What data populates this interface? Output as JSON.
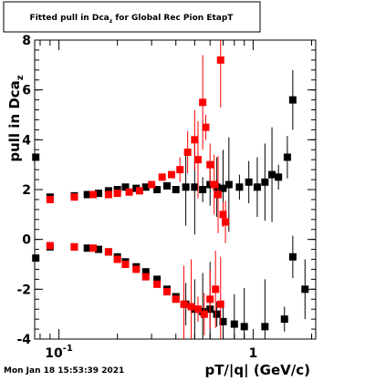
{
  "page": {
    "title": "Fitted pull in Dca",
    "title_sub": "z",
    "title_rest": " for Global Rec Pion EtapT",
    "timestamp": "Mon Jan 18 15:53:39 2021"
  },
  "chart_data": {
    "type": "scatter",
    "title": "Fitted pull in Dca_z for Global Rec Pion EtapT",
    "xlabel": "pT/|q| (GeV/c)",
    "ylabel": "pull in Dca_z",
    "xscale": "log",
    "xlim": [
      0.075,
      2.1
    ],
    "ylim": [
      -4,
      8
    ],
    "xticks": [
      {
        "value": 0.1,
        "label": "10",
        "exp": "-1"
      },
      {
        "value": 1,
        "label": "1",
        "exp": ""
      }
    ],
    "yticks": [
      -4,
      -2,
      0,
      2,
      4,
      6,
      8
    ],
    "grid": false,
    "legend": "none",
    "series": [
      {
        "color": "#000000",
        "points": [
          {
            "x": 0.076,
            "y": 3.3
          },
          {
            "x": 0.09,
            "y": 1.7
          },
          {
            "x": 0.12,
            "y": 1.75
          },
          {
            "x": 0.14,
            "y": 1.8
          },
          {
            "x": 0.16,
            "y": 1.85
          },
          {
            "x": 0.18,
            "y": 1.95
          },
          {
            "x": 0.2,
            "y": 2.0
          },
          {
            "x": 0.22,
            "y": 2.1
          },
          {
            "x": 0.25,
            "y": 2.05
          },
          {
            "x": 0.28,
            "y": 2.1
          },
          {
            "x": 0.32,
            "y": 2.0
          },
          {
            "x": 0.36,
            "y": 2.15
          },
          {
            "x": 0.4,
            "y": 2.0
          },
          {
            "x": 0.45,
            "y": 2.1
          },
          {
            "x": 0.5,
            "y": 2.1
          },
          {
            "x": 0.55,
            "y": 2.0
          },
          {
            "x": 0.6,
            "y": 2.2
          },
          {
            "x": 0.65,
            "y": 2.1
          },
          {
            "x": 0.7,
            "y": 2.05
          },
          {
            "x": 0.75,
            "y": 2.2
          },
          {
            "x": 0.85,
            "y": 2.1
          },
          {
            "x": 0.95,
            "y": 2.3
          },
          {
            "x": 1.05,
            "y": 2.1
          },
          {
            "x": 1.15,
            "y": 2.3
          },
          {
            "x": 1.25,
            "y": 2.6
          },
          {
            "x": 1.35,
            "y": 2.5
          },
          {
            "x": 1.5,
            "y": 3.3
          },
          {
            "x": 1.6,
            "y": 5.6
          },
          {
            "x": 0.076,
            "y": -0.75
          },
          {
            "x": 0.09,
            "y": -0.3
          },
          {
            "x": 0.12,
            "y": -0.3
          },
          {
            "x": 0.14,
            "y": -0.35
          },
          {
            "x": 0.16,
            "y": -0.4
          },
          {
            "x": 0.18,
            "y": -0.5
          },
          {
            "x": 0.2,
            "y": -0.7
          },
          {
            "x": 0.22,
            "y": -0.9
          },
          {
            "x": 0.25,
            "y": -1.1
          },
          {
            "x": 0.28,
            "y": -1.3
          },
          {
            "x": 0.32,
            "y": -1.6
          },
          {
            "x": 0.36,
            "y": -2.0
          },
          {
            "x": 0.4,
            "y": -2.3
          },
          {
            "x": 0.45,
            "y": -2.6
          },
          {
            "x": 0.5,
            "y": -2.8
          },
          {
            "x": 0.55,
            "y": -2.9
          },
          {
            "x": 0.6,
            "y": -2.8
          },
          {
            "x": 0.65,
            "y": -3.0
          },
          {
            "x": 0.7,
            "y": -3.3
          },
          {
            "x": 0.8,
            "y": -3.4
          },
          {
            "x": 0.9,
            "y": -3.5
          },
          {
            "x": 1.15,
            "y": -3.5
          },
          {
            "x": 1.45,
            "y": -3.2
          },
          {
            "x": 1.6,
            "y": -0.7
          },
          {
            "x": 1.85,
            "y": -2.0
          }
        ]
      },
      {
        "color": "#ff0000",
        "points": [
          {
            "x": 0.09,
            "y": 1.6
          },
          {
            "x": 0.12,
            "y": 1.7
          },
          {
            "x": 0.15,
            "y": 1.8
          },
          {
            "x": 0.18,
            "y": 1.8
          },
          {
            "x": 0.2,
            "y": 1.85
          },
          {
            "x": 0.23,
            "y": 1.9
          },
          {
            "x": 0.26,
            "y": 1.95
          },
          {
            "x": 0.3,
            "y": 2.2
          },
          {
            "x": 0.34,
            "y": 2.5
          },
          {
            "x": 0.38,
            "y": 2.6
          },
          {
            "x": 0.42,
            "y": 2.8
          },
          {
            "x": 0.46,
            "y": 3.5
          },
          {
            "x": 0.5,
            "y": 4.0
          },
          {
            "x": 0.52,
            "y": 3.2
          },
          {
            "x": 0.55,
            "y": 5.5
          },
          {
            "x": 0.57,
            "y": 4.5
          },
          {
            "x": 0.6,
            "y": 3.0
          },
          {
            "x": 0.63,
            "y": 2.2
          },
          {
            "x": 0.66,
            "y": 1.8
          },
          {
            "x": 0.68,
            "y": 7.2
          },
          {
            "x": 0.7,
            "y": 1.0
          },
          {
            "x": 0.72,
            "y": 0.7
          },
          {
            "x": 0.09,
            "y": -0.25
          },
          {
            "x": 0.12,
            "y": -0.3
          },
          {
            "x": 0.15,
            "y": -0.35
          },
          {
            "x": 0.18,
            "y": -0.5
          },
          {
            "x": 0.2,
            "y": -0.8
          },
          {
            "x": 0.22,
            "y": -1.0
          },
          {
            "x": 0.25,
            "y": -1.2
          },
          {
            "x": 0.28,
            "y": -1.5
          },
          {
            "x": 0.32,
            "y": -1.8
          },
          {
            "x": 0.36,
            "y": -2.1
          },
          {
            "x": 0.4,
            "y": -2.4
          },
          {
            "x": 0.44,
            "y": -2.6
          },
          {
            "x": 0.48,
            "y": -2.7
          },
          {
            "x": 0.52,
            "y": -2.8
          },
          {
            "x": 0.56,
            "y": -3.0
          },
          {
            "x": 0.6,
            "y": -2.4
          },
          {
            "x": 0.64,
            "y": -2.0
          },
          {
            "x": 0.68,
            "y": -2.6
          }
        ]
      }
    ]
  }
}
